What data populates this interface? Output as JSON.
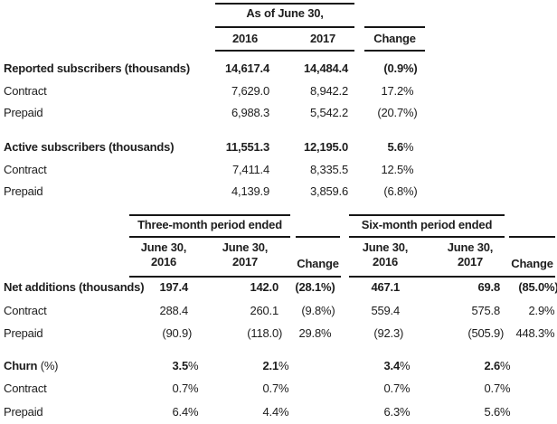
{
  "colors": {
    "text": "#1d1d1d",
    "rule": "#161616",
    "background": "#ffffff"
  },
  "table1": {
    "spanner": "As of June 30,",
    "col_headers": [
      "2016",
      "2017",
      "Change"
    ],
    "rows": [
      {
        "label": "Reported subscribers (thousands)",
        "bold": true,
        "values": [
          "14,617.4",
          "14,484.4",
          "(0.9%)"
        ]
      },
      {
        "label": "Contract",
        "bold": false,
        "values": [
          "7,629.0",
          "8,942.2",
          "17.2%"
        ]
      },
      {
        "label": "Prepaid",
        "bold": false,
        "values": [
          "6,988.3",
          "5,542.2",
          "(20.7%)"
        ]
      },
      {
        "spacer": true
      },
      {
        "label": "Active subscribers (thousands)",
        "bold": true,
        "values": [
          "11,551.3",
          "12,195.0",
          "5.6%"
        ]
      },
      {
        "label": "Contract",
        "bold": false,
        "values": [
          "7,411.4",
          "8,335.5",
          "12.5%"
        ]
      },
      {
        "label": "Prepaid",
        "bold": false,
        "values": [
          "4,139.9",
          "3,859.6",
          "(6.8%)"
        ]
      }
    ]
  },
  "table2": {
    "spanners": [
      "Three-month period ended",
      "Six-month period ended"
    ],
    "col_headers": [
      "June 30,\n2016",
      "June 30,\n2017",
      "Change",
      "June 30,\n2016",
      "June 30,\n2017",
      "Change"
    ],
    "rows": [
      {
        "label": "Net additions (thousands)",
        "bold": true,
        "values": [
          "197.4",
          "142.0",
          "(28.1%)",
          "467.1",
          "69.8",
          "(85.0%)"
        ]
      },
      {
        "label": "Contract",
        "bold": false,
        "values": [
          "288.4",
          "260.1",
          "(9.8%)",
          "559.4",
          "575.8",
          "2.9%"
        ]
      },
      {
        "label": "Prepaid",
        "bold": false,
        "values": [
          "(90.9)",
          "(118.0)",
          "29.8%",
          "(92.3)",
          "(505.9)",
          "448.3%"
        ]
      },
      {
        "spacer": true
      },
      {
        "label": "Churn",
        "label_suffix": " (%)",
        "bold": true,
        "values": [
          "3.5%",
          "2.1%",
          "",
          "3.4%",
          "2.6%",
          ""
        ]
      },
      {
        "label": "Contract",
        "bold": false,
        "values": [
          "0.7%",
          "0.7%",
          "",
          "0.7%",
          "0.7%",
          ""
        ]
      },
      {
        "label": "Prepaid",
        "bold": false,
        "values": [
          "6.4%",
          "4.4%",
          "",
          "6.3%",
          "5.6%",
          ""
        ]
      }
    ]
  }
}
